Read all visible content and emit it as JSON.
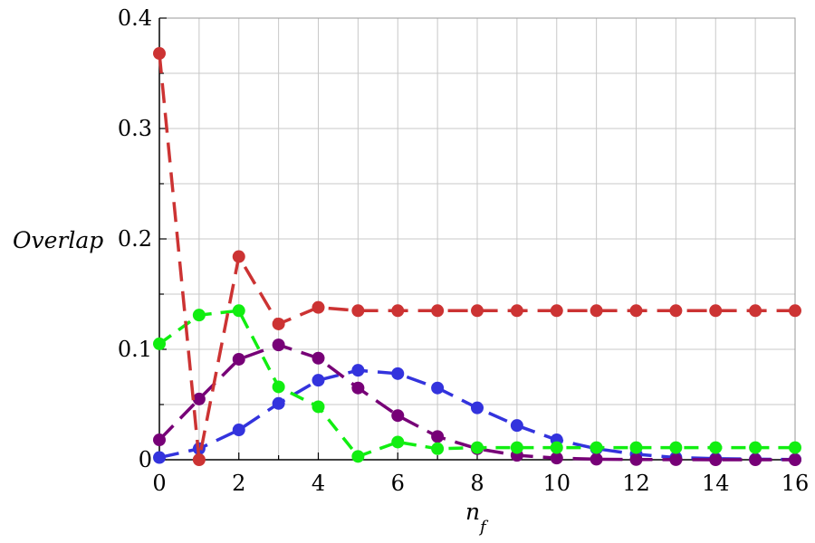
{
  "chart_data": {
    "type": "line",
    "title": "",
    "xlabel": "n",
    "xlabel_sub": "f",
    "ylabel": "Overlap",
    "xlim": [
      0,
      16
    ],
    "ylim": [
      0,
      0.4
    ],
    "xticks": [
      "0",
      "2",
      "4",
      "6",
      "8",
      "10",
      "12",
      "14",
      "16"
    ],
    "yticks": [
      "0",
      "0.1",
      "0.2",
      "0.3",
      "0.4"
    ],
    "grid": true,
    "x": [
      0,
      1,
      2,
      3,
      4,
      5,
      6,
      7,
      8,
      9,
      10,
      11,
      12,
      13,
      14,
      15,
      16
    ],
    "series": [
      {
        "color": "#3333dd",
        "dash": "long",
        "values": [
          0.002,
          0.01,
          0.027,
          0.051,
          0.072,
          0.081,
          0.078,
          0.065,
          0.047,
          0.031,
          0.018,
          0.01,
          0.005,
          0.002,
          0.001,
          0.0005,
          0.0002
        ]
      },
      {
        "color": "#770077",
        "dash": "long",
        "values": [
          0.018,
          0.055,
          0.091,
          0.104,
          0.092,
          0.065,
          0.04,
          0.021,
          0.01,
          0.004,
          0.0015,
          0.0005,
          0.0002,
          0.0001,
          0.0,
          0.0,
          0.0
        ]
      },
      {
        "color": "#11ee11",
        "dash": "medium",
        "values": [
          0.105,
          0.131,
          0.135,
          0.066,
          0.048,
          0.003,
          0.016,
          0.01,
          0.011,
          0.011,
          0.011,
          0.011,
          0.011,
          0.011,
          0.011,
          0.011,
          0.011
        ]
      },
      {
        "color": "#cc3333",
        "dash": "long",
        "values": [
          0.368,
          0.0,
          0.184,
          0.123,
          0.138,
          0.135,
          0.135,
          0.135,
          0.135,
          0.135,
          0.135,
          0.135,
          0.135,
          0.135,
          0.135,
          0.135,
          0.135
        ]
      }
    ]
  }
}
